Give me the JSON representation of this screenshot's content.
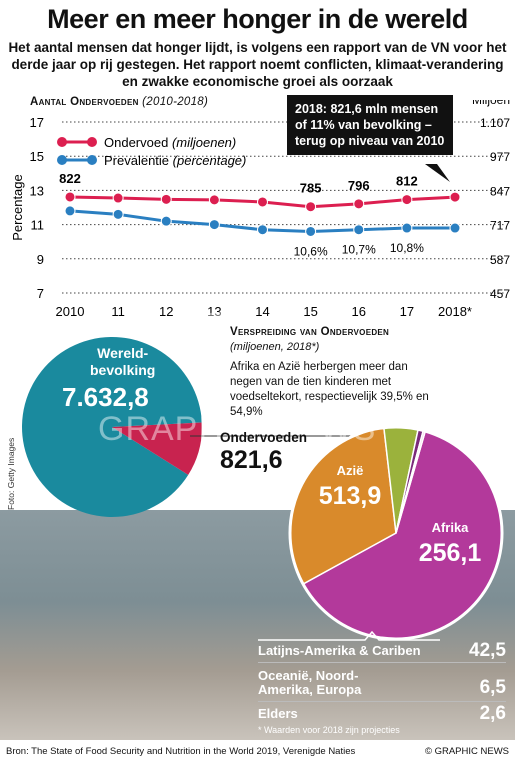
{
  "title": "Meer en meer honger in de wereld",
  "subtitle": "Het aantal mensen dat honger lijdt, is volgens een rapport van de VN voor het derde jaar op rij gestegen. Het rapport noemt conflicten, klimaat-verandering en zwakke economische groei als oorzaak",
  "section1": {
    "label": "Aantal Ondervoeden",
    "period": "(2010-2018)"
  },
  "callout": "2018: 821,6 mln mensen of 11% van bevolking – terug op niveau van 2010",
  "section2": {
    "label": "Verspreiding van Ondervoeden",
    "sub": "(miljoenen, 2018*)"
  },
  "distribution_note": "Afrika en Azië herbergen meer dan negen van de tien kinderen met voedseltekort, respectievelijk 39,5% en 54,9%",
  "world_population": {
    "label_line1": "Wereld-",
    "label_line2": "bevolking",
    "value": "7.632,8"
  },
  "undernourished": {
    "label": "Ondervoeden",
    "value": "821,6"
  },
  "regions": [
    {
      "name": "Azië",
      "value": "513,9",
      "color": "#b3399b"
    },
    {
      "name": "Afrika",
      "value": "256,1",
      "color": "#d98a2b"
    },
    {
      "name": "Latijns-Amerika & Cariben",
      "value": "42,5",
      "color": "#9bb23c"
    },
    {
      "name": "Oceanië, Noord-Amerika, Europa",
      "name_line1": "Oceanië, Noord-",
      "name_line2": "Amerika, Europa",
      "value": "6,5",
      "color": "#7a2a7a"
    },
    {
      "name": "Elders",
      "value": "2,6",
      "color": "#f0d0e8"
    }
  ],
  "footnote": "* Waarden voor 2018 zijn projecties",
  "photo_credit": "Foto: Getty Images",
  "source": "Bron: The State of Food Security and Nutrition in the World 2019, Verenigde Naties",
  "credit": "© GRAPHIC NEWS",
  "watermark_line1": "GN",
  "watermark_line2": "GRAPHIC NEWS",
  "colors": {
    "undernourished_line": "#dc1f50",
    "prevalence_line": "#2a7fc1",
    "world_pie": "#1a8a9e",
    "underfed_slice": "#c8234f"
  },
  "chart_data": [
    {
      "type": "line",
      "x": [
        "2010",
        "11",
        "12",
        "13",
        "14",
        "15",
        "16",
        "17",
        "2018*"
      ],
      "ylabel": "Percentage",
      "ylabel_right": "Miljoen",
      "ylim": [
        7,
        17
      ],
      "yticks": [
        "7",
        "9",
        "11",
        "13",
        "15",
        "17"
      ],
      "ylim_right": [
        457,
        1107
      ],
      "yticks_right": [
        "457",
        "587",
        "717",
        "847",
        "977",
        "1.107"
      ],
      "grid": true,
      "legend": "top-left",
      "series": [
        {
          "name": "Ondervoed",
          "name_suffix": "(miljoenen)",
          "axis": "right",
          "values": [
            822,
            818,
            813,
            811,
            803,
            785,
            796,
            812,
            821.6
          ],
          "labels": [
            "822",
            "",
            "",
            "",
            "",
            "785",
            "796",
            "812",
            ""
          ]
        },
        {
          "name": "Prevalentie",
          "name_suffix": "(percentage)",
          "axis": "left",
          "values": [
            11.8,
            11.6,
            11.2,
            11.0,
            10.7,
            10.6,
            10.7,
            10.8,
            10.8
          ],
          "labels": [
            "",
            "",
            "",
            "",
            "",
            "10,6%",
            "10,7%",
            "10,8%",
            ""
          ]
        }
      ]
    },
    {
      "type": "pie",
      "labels": [
        "Wereldbevolking",
        "Ondervoeden"
      ],
      "values": [
        7632.8,
        821.6
      ]
    },
    {
      "type": "pie",
      "labels": [
        "Azië",
        "Afrika",
        "Latijns-Amerika & Cariben",
        "Oceanië, Noord-Amerika, Europa",
        "Elders"
      ],
      "values": [
        513.9,
        256.1,
        42.5,
        6.5,
        2.6
      ]
    }
  ]
}
